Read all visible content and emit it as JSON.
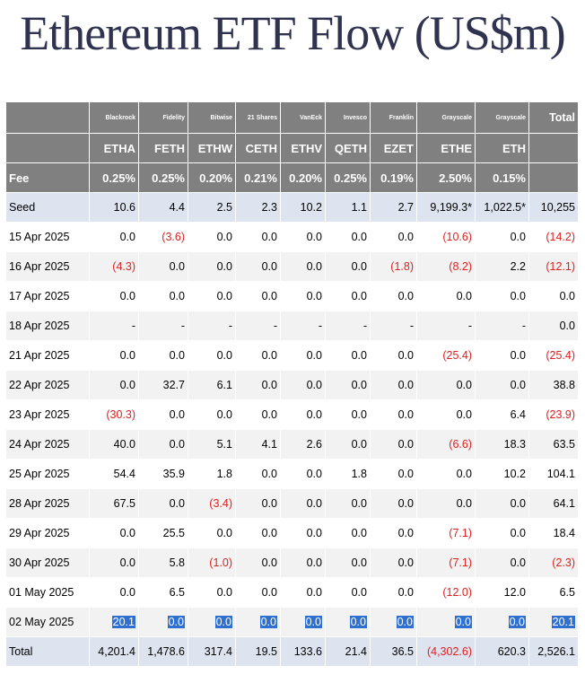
{
  "title": "Ethereum ETF Flow (US$m)",
  "colors": {
    "header_bg": "#808080",
    "negative": "#e02020",
    "highlight": "#2f6fd0",
    "seed_total_bg": "#dde3ef"
  },
  "issuers": [
    "Blackrock",
    "Fidelity",
    "Bitwise",
    "21 Shares",
    "VanEck",
    "Invesco",
    "Franklin",
    "Grayscale",
    "Grayscale"
  ],
  "tickers": [
    "ETHA",
    "FETH",
    "ETHW",
    "CETH",
    "ETHV",
    "QETH",
    "EZET",
    "ETHE",
    "ETH"
  ],
  "total_label": "Total",
  "fee_label": "Fee",
  "fees": [
    "0.25%",
    "0.25%",
    "0.20%",
    "0.21%",
    "0.20%",
    "0.25%",
    "0.19%",
    "2.50%",
    "0.15%",
    ""
  ],
  "seed": {
    "label": "Seed",
    "values": [
      "10.6",
      "4.4",
      "2.5",
      "2.3",
      "10.2",
      "1.1",
      "2.7",
      "9,199.3*",
      "1,022.5*",
      "10,255"
    ]
  },
  "rows": [
    {
      "date": "15 Apr 2025",
      "values": [
        "0.0",
        "(3.6)",
        "0.0",
        "0.0",
        "0.0",
        "0.0",
        "0.0",
        "(10.6)",
        "0.0",
        "(14.2)"
      ]
    },
    {
      "date": "16 Apr 2025",
      "values": [
        "(4.3)",
        "0.0",
        "0.0",
        "0.0",
        "0.0",
        "0.0",
        "(1.8)",
        "(8.2)",
        "2.2",
        "(12.1)"
      ]
    },
    {
      "date": "17 Apr 2025",
      "values": [
        "0.0",
        "0.0",
        "0.0",
        "0.0",
        "0.0",
        "0.0",
        "0.0",
        "0.0",
        "0.0",
        "0.0"
      ]
    },
    {
      "date": "18 Apr 2025",
      "values": [
        "-",
        "-",
        "-",
        "-",
        "-",
        "-",
        "-",
        "-",
        "-",
        "0.0"
      ]
    },
    {
      "date": "21 Apr 2025",
      "values": [
        "0.0",
        "0.0",
        "0.0",
        "0.0",
        "0.0",
        "0.0",
        "0.0",
        "(25.4)",
        "0.0",
        "(25.4)"
      ]
    },
    {
      "date": "22 Apr 2025",
      "values": [
        "0.0",
        "32.7",
        "6.1",
        "0.0",
        "0.0",
        "0.0",
        "0.0",
        "0.0",
        "0.0",
        "38.8"
      ]
    },
    {
      "date": "23 Apr 2025",
      "values": [
        "(30.3)",
        "0.0",
        "0.0",
        "0.0",
        "0.0",
        "0.0",
        "0.0",
        "0.0",
        "6.4",
        "(23.9)"
      ]
    },
    {
      "date": "24 Apr 2025",
      "values": [
        "40.0",
        "0.0",
        "5.1",
        "4.1",
        "2.6",
        "0.0",
        "0.0",
        "(6.6)",
        "18.3",
        "63.5"
      ]
    },
    {
      "date": "25 Apr 2025",
      "values": [
        "54.4",
        "35.9",
        "1.8",
        "0.0",
        "0.0",
        "1.8",
        "0.0",
        "0.0",
        "10.2",
        "104.1"
      ]
    },
    {
      "date": "28 Apr 2025",
      "values": [
        "67.5",
        "0.0",
        "(3.4)",
        "0.0",
        "0.0",
        "0.0",
        "0.0",
        "0.0",
        "0.0",
        "64.1"
      ]
    },
    {
      "date": "29 Apr 2025",
      "values": [
        "0.0",
        "25.5",
        "0.0",
        "0.0",
        "0.0",
        "0.0",
        "0.0",
        "(7.1)",
        "0.0",
        "18.4"
      ]
    },
    {
      "date": "30 Apr 2025",
      "values": [
        "0.0",
        "5.8",
        "(1.0)",
        "0.0",
        "0.0",
        "0.0",
        "0.0",
        "(7.1)",
        "0.0",
        "(2.3)"
      ]
    },
    {
      "date": "01 May 2025",
      "values": [
        "0.0",
        "6.5",
        "0.0",
        "0.0",
        "0.0",
        "0.0",
        "0.0",
        "(12.0)",
        "12.0",
        "6.5"
      ]
    },
    {
      "date": "02 May 2025",
      "highlighted": true,
      "values": [
        "20.1",
        "0.0",
        "0.0",
        "0.0",
        "0.0",
        "0.0",
        "0.0",
        "0.0",
        "0.0",
        "20.1"
      ]
    }
  ],
  "total_row": {
    "label": "Total",
    "values": [
      "4,201.4",
      "1,478.6",
      "317.4",
      "19.5",
      "133.6",
      "21.4",
      "36.5",
      "(4,302.6)",
      "620.3",
      "2,526.1"
    ]
  }
}
